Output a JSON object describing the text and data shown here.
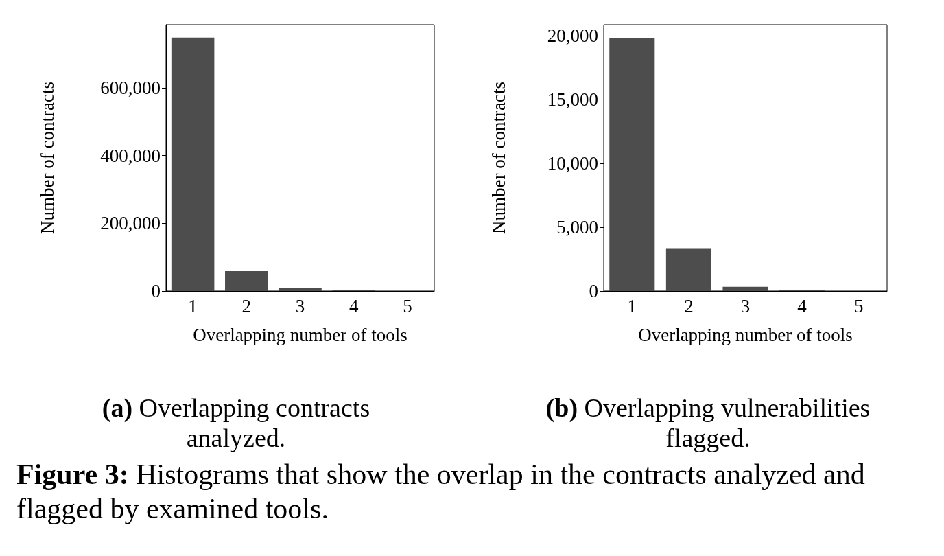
{
  "chart_data": [
    {
      "type": "bar",
      "xlabel": "Overlapping number of tools",
      "ylabel": "Number of contracts",
      "categories": [
        "1",
        "2",
        "3",
        "4",
        "5"
      ],
      "values": [
        748000,
        59000,
        10000,
        2000,
        0
      ],
      "color": "#4d4d4d",
      "ylim": [
        0,
        786000
      ],
      "yticks": [
        0,
        {
          "value": 200000,
          "label": "200,000"
        },
        {
          "value": 400000,
          "label": "400,000"
        },
        {
          "value": 600000,
          "label": "600,000"
        }
      ],
      "grid": false,
      "annotations": [
        "(a) Overlapping contracts analyzed.",
        "Figure 3: Histograms that show the overlap in the contracts analyzed and flagged by examined tools."
      ]
    },
    {
      "type": "bar",
      "xlabel": "Overlapping number of tools",
      "ylabel": "Number of contracts",
      "categories": [
        "1",
        "2",
        "3",
        "4",
        "5"
      ],
      "values": [
        19840,
        3300,
        340,
        90,
        0
      ],
      "color": "#4d4d4d",
      "ylim": [
        0,
        20860
      ],
      "yticks": [
        0,
        {
          "value": 5000,
          "label": "5,000"
        },
        {
          "value": 10000,
          "label": "10,000"
        },
        {
          "value": 15000,
          "label": "15,000"
        },
        {
          "value": 20000,
          "label": "20,000"
        }
      ],
      "grid": false,
      "annotations": [
        "(b) Overlapping vulnerabilities flagged."
      ]
    }
  ]
}
